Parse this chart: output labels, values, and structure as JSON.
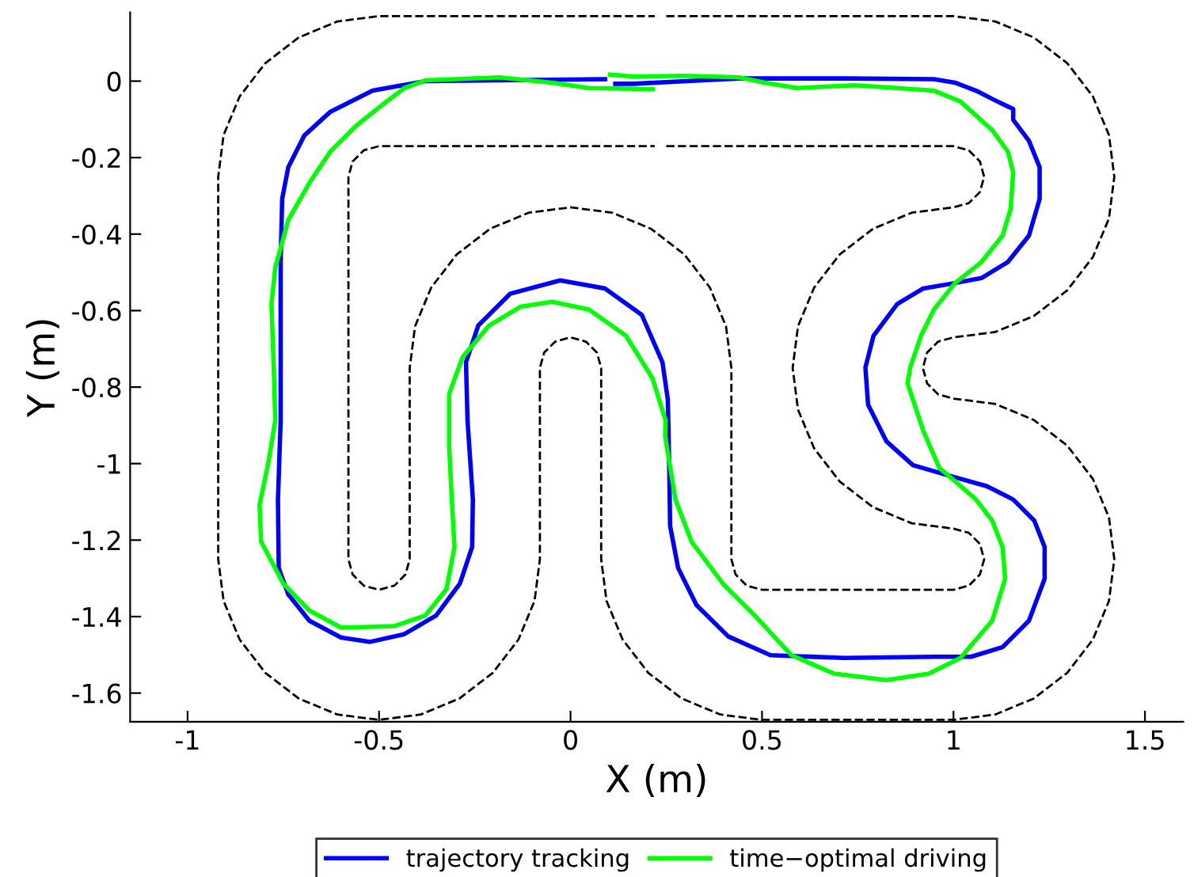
{
  "chart_data": {
    "type": "line",
    "xlabel": "X (m)",
    "ylabel": "Y (m)",
    "xlim": [
      -1.15,
      1.6
    ],
    "ylim": [
      -1.675,
      0.18
    ],
    "xticks": [
      -1,
      -0.5,
      0,
      0.5,
      1,
      1.5
    ],
    "yticks": [
      0,
      -0.2,
      -0.4,
      -0.6,
      -0.8,
      -1,
      -1.2,
      -1.4,
      -1.6
    ],
    "grid": false,
    "legend": "bottom",
    "marker": "none",
    "series": [
      {
        "color": "#000000",
        "line_style": "dashed",
        "x": [
          0.25,
          1.0,
          1.109,
          1.21,
          1.297,
          1.364,
          1.406,
          1.42,
          1.406,
          1.364,
          1.297,
          1.21,
          1.109,
          1.0,
          0.96,
          0.931,
          0.92,
          0.931,
          0.96,
          1.0,
          1.109,
          1.21,
          1.297,
          1.364,
          1.406,
          1.42,
          1.406,
          1.364,
          1.297,
          1.21,
          1.109,
          1.0,
          0.5,
          0.391,
          0.29,
          0.203,
          0.136,
          0.094,
          0.08,
          0.08,
          0.069,
          0.04,
          0,
          -0.04,
          -0.069,
          -0.08,
          -0.08,
          -0.094,
          -0.136,
          -0.203,
          -0.29,
          -0.391,
          -0.5,
          -0.609,
          -0.71,
          -0.797,
          -0.864,
          -0.906,
          -0.92,
          -0.92,
          -0.906,
          -0.864,
          -0.797,
          -0.71,
          -0.609,
          -0.5,
          0.22
        ],
        "values": [
          0.17,
          0.17,
          0.156,
          0.114,
          0.047,
          -0.04,
          -0.141,
          -0.25,
          -0.359,
          -0.46,
          -0.547,
          -0.614,
          -0.656,
          -0.67,
          -0.681,
          -0.71,
          -0.75,
          -0.79,
          -0.819,
          -0.83,
          -0.844,
          -0.886,
          -0.953,
          -1.04,
          -1.141,
          -1.25,
          -1.359,
          -1.46,
          -1.547,
          -1.614,
          -1.656,
          -1.67,
          -1.67,
          -1.656,
          -1.614,
          -1.547,
          -1.46,
          -1.359,
          -1.25,
          -0.75,
          -0.71,
          -0.681,
          -0.67,
          -0.681,
          -0.71,
          -0.75,
          -1.25,
          -1.359,
          -1.46,
          -1.547,
          -1.614,
          -1.656,
          -1.67,
          -1.656,
          -1.614,
          -1.547,
          -1.46,
          -1.359,
          -1.25,
          -0.25,
          -0.141,
          -0.04,
          0.047,
          0.114,
          0.156,
          0.17,
          0.17
        ]
      },
      {
        "color": "#000000",
        "line_style": "dashed",
        "x": [
          0.25,
          1.0,
          1.04,
          1.069,
          1.08,
          1.069,
          1.04,
          1.0,
          0.891,
          0.79,
          0.703,
          0.636,
          0.594,
          0.58,
          0.594,
          0.636,
          0.703,
          0.79,
          0.891,
          1.0,
          1.04,
          1.069,
          1.08,
          1.069,
          1.04,
          1.0,
          0.5,
          0.46,
          0.431,
          0.42,
          0.42,
          0.406,
          0.364,
          0.297,
          0.21,
          0.109,
          0,
          -0.109,
          -0.21,
          -0.297,
          -0.364,
          -0.406,
          -0.42,
          -0.42,
          -0.431,
          -0.46,
          -0.5,
          -0.54,
          -0.569,
          -0.58,
          -0.58,
          -0.569,
          -0.54,
          -0.5,
          0.22
        ],
        "values": [
          -0.17,
          -0.17,
          -0.181,
          -0.21,
          -0.25,
          -0.29,
          -0.319,
          -0.33,
          -0.344,
          -0.386,
          -0.453,
          -0.54,
          -0.641,
          -0.75,
          -0.859,
          -0.96,
          -1.047,
          -1.114,
          -1.156,
          -1.17,
          -1.181,
          -1.21,
          -1.25,
          -1.29,
          -1.319,
          -1.33,
          -1.33,
          -1.319,
          -1.29,
          -1.25,
          -0.75,
          -0.641,
          -0.54,
          -0.453,
          -0.386,
          -0.344,
          -0.33,
          -0.344,
          -0.386,
          -0.453,
          -0.54,
          -0.641,
          -0.75,
          -1.25,
          -1.29,
          -1.319,
          -1.33,
          -1.319,
          -1.29,
          -1.25,
          -0.25,
          -0.21,
          -0.181,
          -0.17,
          -0.17
        ]
      },
      {
        "name": "trajectory tracking",
        "color": "#0000ff",
        "line_style": "solid",
        "x": [
          0.117,
          0.164,
          0.302,
          0.44,
          0.715,
          0.949,
          1.004,
          1.059,
          1.114,
          1.156,
          1.156,
          1.197,
          1.225,
          1.225,
          1.197,
          1.142,
          1.073,
          1.004,
          0.921,
          0.853,
          0.791,
          0.77,
          0.777,
          0.825,
          0.894,
          0.99,
          1.087,
          1.156,
          1.211,
          1.238,
          1.238,
          1.197,
          1.128,
          1.046,
          0.949,
          0.715,
          0.522,
          0.412,
          0.329,
          0.281,
          0.26,
          0.258,
          0.254,
          0.24,
          0.186,
          0.09,
          -0.027,
          -0.158,
          -0.241,
          -0.273,
          -0.269,
          -0.255,
          -0.257,
          -0.289,
          -0.351,
          -0.434,
          -0.523,
          -0.599,
          -0.682,
          -0.737,
          -0.762,
          -0.764,
          -0.757,
          -0.757,
          -0.757,
          -0.753,
          -0.737,
          -0.695,
          -0.627,
          -0.517,
          -0.379,
          0.09
        ],
        "values": [
          -0.007,
          -0.007,
          0.0,
          0.007,
          0.007,
          0.005,
          -0.004,
          -0.025,
          -0.053,
          -0.073,
          -0.101,
          -0.156,
          -0.225,
          -0.308,
          -0.404,
          -0.473,
          -0.515,
          -0.528,
          -0.542,
          -0.583,
          -0.666,
          -0.749,
          -0.846,
          -0.942,
          -1.004,
          -1.032,
          -1.059,
          -1.094,
          -1.149,
          -1.218,
          -1.301,
          -1.411,
          -1.48,
          -1.505,
          -1.505,
          -1.508,
          -1.501,
          -1.452,
          -1.37,
          -1.273,
          -1.163,
          -1.025,
          -0.832,
          -0.735,
          -0.611,
          -0.542,
          -0.521,
          -0.556,
          -0.639,
          -0.735,
          -0.887,
          -1.094,
          -1.218,
          -1.314,
          -1.397,
          -1.446,
          -1.466,
          -1.455,
          -1.411,
          -1.342,
          -1.273,
          -1.094,
          -0.887,
          -0.68,
          -0.473,
          -0.308,
          -0.225,
          -0.142,
          -0.08,
          -0.025,
          0.0,
          0.005
        ]
      },
      {
        "name": "time−optimal driving",
        "color": "#00ff00",
        "line_style": "solid",
        "x": [
          0.214,
          0.048,
          -0.048,
          -0.186,
          -0.379,
          -0.434,
          -0.489,
          -0.558,
          -0.627,
          -0.682,
          -0.737,
          -0.771,
          -0.781,
          -0.775,
          -0.771,
          -0.789,
          -0.812,
          -0.808,
          -0.75,
          -0.682,
          -0.599,
          -0.461,
          -0.379,
          -0.324,
          -0.303,
          -0.31,
          -0.317,
          -0.317,
          -0.282,
          -0.213,
          -0.131,
          -0.048,
          0.048,
          0.145,
          0.214,
          0.248,
          0.247,
          0.274,
          0.316,
          0.398,
          0.481,
          0.577,
          0.688,
          0.825,
          0.936,
          1.018,
          1.101,
          1.135,
          1.128,
          1.101,
          1.059,
          1.004,
          0.963,
          0.921,
          0.894,
          0.88,
          0.887,
          0.915,
          0.949,
          1.004,
          1.073,
          1.128,
          1.149,
          1.156,
          1.142,
          1.101,
          1.018,
          0.949,
          0.853,
          0.743,
          0.591,
          0.508,
          0.44,
          0.302,
          0.164,
          0.103
        ],
        "values": [
          -0.021,
          -0.018,
          -0.004,
          0.01,
          0.002,
          -0.018,
          -0.06,
          -0.115,
          -0.184,
          -0.266,
          -0.363,
          -0.487,
          -0.583,
          -0.749,
          -0.887,
          -0.997,
          -1.108,
          -1.204,
          -1.314,
          -1.384,
          -1.429,
          -1.425,
          -1.397,
          -1.328,
          -1.218,
          -1.094,
          -0.956,
          -0.818,
          -0.722,
          -0.639,
          -0.59,
          -0.577,
          -0.597,
          -0.666,
          -0.777,
          -0.887,
          -0.928,
          -1.094,
          -1.204,
          -1.314,
          -1.397,
          -1.501,
          -1.549,
          -1.566,
          -1.549,
          -1.508,
          -1.411,
          -1.301,
          -1.218,
          -1.149,
          -1.094,
          -1.046,
          -1.011,
          -0.914,
          -0.832,
          -0.79,
          -0.749,
          -0.666,
          -0.597,
          -0.528,
          -0.473,
          -0.404,
          -0.335,
          -0.239,
          -0.184,
          -0.128,
          -0.053,
          -0.025,
          -0.018,
          -0.011,
          -0.018,
          -0.004,
          0.01,
          0.014,
          0.012,
          0.017
        ]
      }
    ]
  }
}
